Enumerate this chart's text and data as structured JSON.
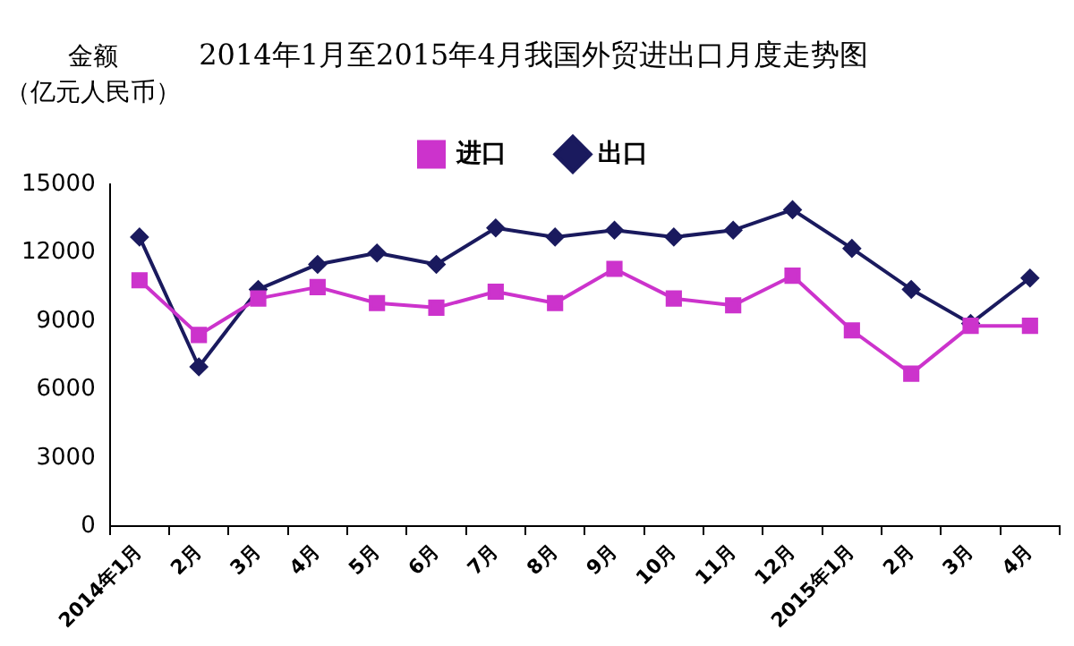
{
  "chart_data": {
    "type": "line",
    "title": "2014年1月至2015年4月我国外贸进出口月度走势图",
    "ylabel": "金额（亿元人民币）",
    "categories": [
      "2014年1月",
      "2月",
      "3月",
      "4月",
      "5月",
      "6月",
      "7月",
      "8月",
      "9月",
      "10月",
      "11月",
      "12月",
      "2015年1月",
      "2月",
      "3月",
      "4月"
    ],
    "series": [
      {
        "name": "出口",
        "color": "#1a1a5e",
        "marker": "diamond",
        "values": [
          12700,
          7000,
          10400,
          11500,
          12000,
          11500,
          13100,
          12700,
          13000,
          12700,
          13000,
          13900,
          12200,
          10400,
          8900,
          10900
        ]
      },
      {
        "name": "进口",
        "color": "#cc33cc",
        "marker": "square",
        "values": [
          10800,
          8400,
          10000,
          10500,
          9800,
          9600,
          10300,
          9800,
          11300,
          10000,
          9700,
          11000,
          8600,
          6700,
          8800,
          8800
        ]
      }
    ],
    "ylim": [
      0,
      15000
    ],
    "yticks": [
      0,
      3000,
      6000,
      9000,
      12000,
      15000
    ],
    "grid": false,
    "legend": "top",
    "line_style": "solid"
  }
}
